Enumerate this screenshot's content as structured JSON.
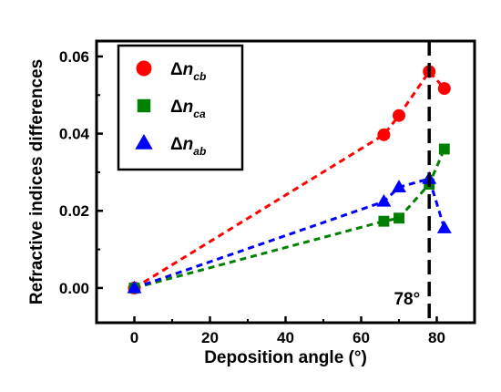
{
  "chart_data": {
    "type": "scatter",
    "xlabel": "Deposition angle (°)",
    "ylabel": "Refractive indices differences",
    "xlim": [
      -10,
      90
    ],
    "ylim": [
      -0.009,
      0.064
    ],
    "xticks": [
      0,
      20,
      40,
      60,
      80
    ],
    "yticks": [
      0.0,
      0.02,
      0.04,
      0.06
    ],
    "xtick_labels": [
      "0",
      "20",
      "40",
      "60",
      "80"
    ],
    "ytick_labels": [
      "0.00",
      "0.02",
      "0.04",
      "0.06"
    ],
    "legend_position": "top-left",
    "series": [
      {
        "name_main": "Δn",
        "name_sub": "cb",
        "color": "#ff0000",
        "marker": "circle",
        "x": [
          0,
          66,
          70,
          78,
          82
        ],
        "y": [
          0.0,
          0.0397,
          0.0447,
          0.0561,
          0.0517
        ]
      },
      {
        "name_main": "Δn",
        "name_sub": "ca",
        "color": "#008000",
        "marker": "square",
        "x": [
          0,
          66,
          70,
          78,
          82
        ],
        "y": [
          0.0,
          0.0173,
          0.0181,
          0.0269,
          0.036
        ]
      },
      {
        "name_main": "Δn",
        "name_sub": "ab",
        "color": "#0000ff",
        "marker": "triangle",
        "x": [
          0,
          66,
          70,
          78,
          82
        ],
        "y": [
          0.0,
          0.0224,
          0.0261,
          0.0283,
          0.0155
        ]
      }
    ],
    "annotations": [
      {
        "type": "vline",
        "x": 78,
        "label": "78°"
      }
    ]
  }
}
